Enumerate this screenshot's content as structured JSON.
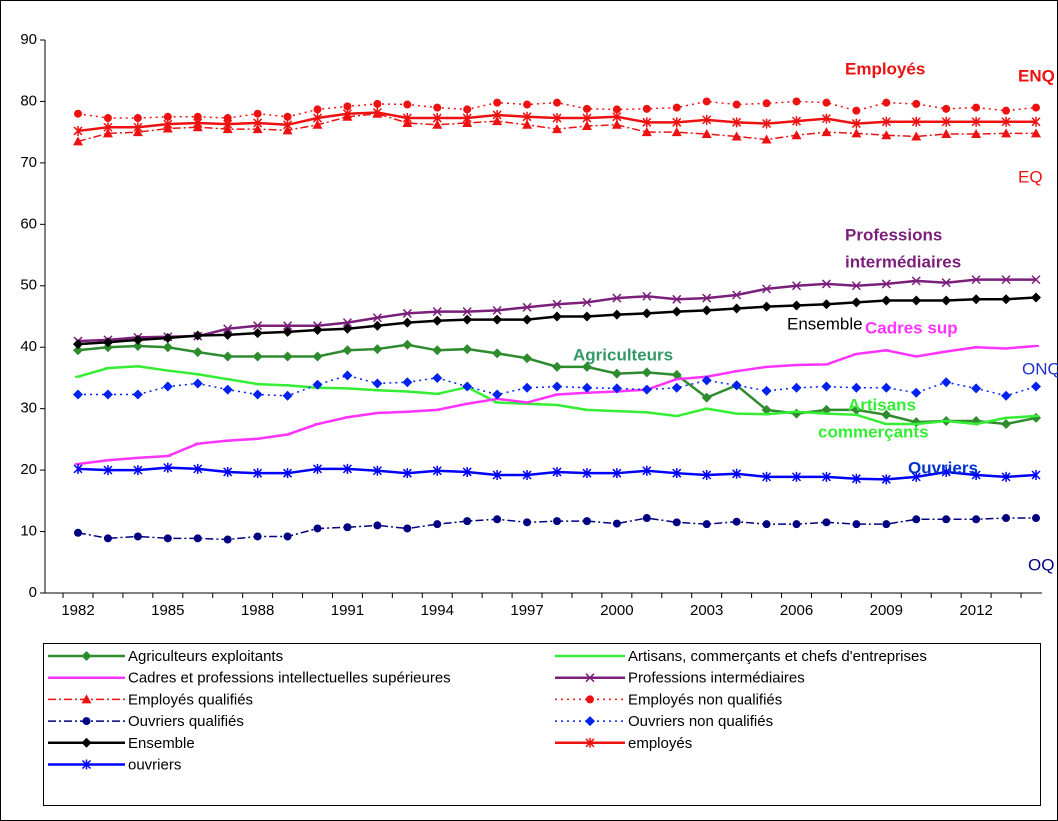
{
  "chart_data": {
    "type": "line",
    "categories": [
      "1982",
      null,
      null,
      "1985",
      null,
      null,
      "1988",
      null,
      null,
      "1991",
      null,
      null,
      "1994",
      null,
      null,
      "1997",
      null,
      null,
      "2000",
      null,
      null,
      "2003",
      null,
      null,
      "2006",
      null,
      null,
      "2009",
      null,
      null,
      "2012",
      null,
      null
    ],
    "ylim": [
      0,
      90
    ],
    "yticks": [
      0,
      10,
      20,
      30,
      40,
      50,
      60,
      70,
      80,
      90
    ],
    "series": [
      {
        "name": "Agriculteurs exploitants",
        "color": "#2e8b2e",
        "marker": "diamond",
        "dash": "none",
        "values": [
          39.5,
          40,
          40.2,
          40,
          39.2,
          38.5,
          38.5,
          38.5,
          38.5,
          39.5,
          39.7,
          40.4,
          39.5,
          39.7,
          39,
          38.2,
          36.8,
          36.8,
          35.7,
          35.9,
          35.5,
          31.8,
          33.8,
          29.8,
          29.2,
          29.8,
          29.8,
          29,
          27.8,
          28,
          28,
          27.5,
          28.5
        ]
      },
      {
        "name": "Artisans, commerçants et chefs d'entreprises",
        "color": "#33ee33",
        "marker": "dash",
        "dash": "none",
        "values": [
          35.2,
          36.6,
          36.9,
          36.2,
          35.6,
          34.8,
          34,
          33.8,
          33.4,
          33.3,
          33,
          32.8,
          32.4,
          33.5,
          31,
          30.8,
          30.6,
          29.8,
          29.6,
          29.4,
          28.8,
          30,
          29.2,
          29.1,
          29.5,
          29.2,
          29,
          27.5,
          27.5,
          28,
          27.5,
          28.5,
          28.8
        ]
      },
      {
        "name": "Cadres et professions intellectuelles supérieures",
        "color": "#ff33ff",
        "marker": "dash",
        "dash": "none",
        "values": [
          21,
          21.6,
          22,
          22.3,
          24.3,
          24.8,
          25.1,
          25.8,
          27.5,
          28.6,
          29.3,
          29.5,
          29.8,
          30.8,
          31.6,
          31,
          32.3,
          32.6,
          32.8,
          33.1,
          34.8,
          35.2,
          36.1,
          36.8,
          37.1,
          37.2,
          38.9,
          39.5,
          38.5,
          39.3,
          40,
          39.8,
          40.2
        ]
      },
      {
        "name": "Professions intermédiaires",
        "color": "#7a1f7a",
        "marker": "x",
        "dash": "none",
        "values": [
          41,
          41.2,
          41.6,
          41.7,
          41.8,
          43,
          43.5,
          43.5,
          43.5,
          44,
          44.8,
          45.5,
          45.8,
          45.8,
          46,
          46.5,
          47,
          47.3,
          48,
          48.3,
          47.8,
          48,
          48.5,
          49.5,
          50,
          50.3,
          50,
          50.3,
          50.8,
          50.5,
          51,
          51,
          51
        ]
      },
      {
        "name": "Employés qualifiés",
        "color": "#ee1111",
        "marker": "triangle",
        "dash": "8,3,2,3",
        "values": [
          73.5,
          74.8,
          75,
          75.6,
          75.8,
          75.5,
          75.5,
          75.3,
          76.2,
          77.5,
          78,
          76.5,
          76.2,
          76.5,
          76.8,
          76.2,
          75.5,
          76,
          76.2,
          75,
          75,
          74.7,
          74.3,
          73.8,
          74.5,
          75,
          74.8,
          74.5,
          74.3,
          74.7,
          74.7,
          74.8,
          74.8
        ]
      },
      {
        "name": "Employés non qualifiés",
        "color": "#ee1111",
        "marker": "circle",
        "dash": "2,4",
        "values": [
          78,
          77.3,
          77.3,
          77.5,
          77.5,
          77.3,
          78,
          77.5,
          78.7,
          79.2,
          79.6,
          79.5,
          79,
          78.7,
          79.8,
          79.5,
          79.8,
          78.8,
          78.7,
          78.8,
          79,
          80,
          79.5,
          79.7,
          80,
          79.8,
          78.5,
          79.8,
          79.6,
          78.8,
          79,
          78.5,
          79
        ]
      },
      {
        "name": "Ouvriers qualifiés",
        "color": "#000080",
        "marker": "circle",
        "dash": "8,3,2,3",
        "values": [
          9.8,
          8.9,
          9.2,
          8.9,
          8.9,
          8.7,
          9.2,
          9.2,
          10.5,
          10.7,
          11,
          10.5,
          11.2,
          11.7,
          12,
          11.5,
          11.7,
          11.7,
          11.3,
          12.2,
          11.5,
          11.2,
          11.6,
          11.2,
          11.2,
          11.5,
          11.2,
          11.2,
          12,
          12,
          12,
          12.2,
          12.2
        ]
      },
      {
        "name": "Ouvriers non qualifiés",
        "color": "#0022ee",
        "marker": "diamond",
        "dash": "2,4",
        "values": [
          32.3,
          32.3,
          32.3,
          33.6,
          34.1,
          33.1,
          32.3,
          32.1,
          33.9,
          35.4,
          34.1,
          34.3,
          35,
          33.6,
          32.3,
          33.4,
          33.6,
          33.4,
          33.3,
          33.1,
          33.4,
          34.6,
          33.8,
          32.9,
          33.4,
          33.6,
          33.4,
          33.4,
          32.6,
          34.3,
          33.3,
          32.1,
          33.6
        ]
      },
      {
        "name": "Ensemble",
        "color": "#000000",
        "marker": "diamond",
        "dash": "none",
        "values": [
          40.5,
          40.8,
          41.2,
          41.5,
          41.9,
          42,
          42.3,
          42.5,
          42.8,
          43,
          43.5,
          44,
          44.3,
          44.5,
          44.5,
          44.5,
          45,
          45,
          45.3,
          45.5,
          45.8,
          46,
          46.3,
          46.6,
          46.8,
          47,
          47.3,
          47.6,
          47.6,
          47.6,
          47.8,
          47.8,
          48.1
        ]
      },
      {
        "name": "employés",
        "color": "#ee1111",
        "marker": "asterisk",
        "dash": "none",
        "values": [
          75.2,
          75.8,
          75.8,
          76.3,
          76.5,
          76.3,
          76.5,
          76.2,
          77.3,
          78,
          78.2,
          77.3,
          77.3,
          77.3,
          77.8,
          77.5,
          77.3,
          77.3,
          77.5,
          76.6,
          76.6,
          77,
          76.6,
          76.4,
          76.8,
          77.2,
          76.4,
          76.7,
          76.7,
          76.7,
          76.7,
          76.7,
          76.7
        ]
      },
      {
        "name": "ouvriers",
        "color": "#0000ff",
        "marker": "asterisk",
        "dash": "none",
        "values": [
          20.2,
          20,
          20,
          20.4,
          20.2,
          19.7,
          19.5,
          19.5,
          20.2,
          20.2,
          19.9,
          19.5,
          19.9,
          19.7,
          19.2,
          19.2,
          19.7,
          19.5,
          19.5,
          19.9,
          19.5,
          19.2,
          19.4,
          18.9,
          18.9,
          18.9,
          18.6,
          18.5,
          18.9,
          19.7,
          19.2,
          18.9,
          19.2
        ]
      }
    ],
    "annotations": [
      {
        "lines": [
          "Employés"
        ],
        "color": "#ee1111",
        "bold": true
      },
      {
        "lines": [
          "ENQ"
        ],
        "color": "#ee1111",
        "bold": true
      },
      {
        "lines": [
          "EQ"
        ],
        "color": "#ee1111",
        "bold": false
      },
      {
        "lines": [
          "Professions",
          "intermédiaires"
        ],
        "color": "#7a1f7a",
        "bold": true
      },
      {
        "lines": [
          "Ensemble"
        ],
        "color": "#000000",
        "bold": false
      },
      {
        "lines": [
          "Cadres sup"
        ],
        "color": "#ff33ff",
        "bold": true
      },
      {
        "lines": [
          "ONQ"
        ],
        "color": "#2233cc",
        "bold": false
      },
      {
        "lines": [
          "Agriculteurs"
        ],
        "color": "#339966",
        "bold": true
      },
      {
        "lines": [
          "Artisans",
          "commerçants"
        ],
        "color": "#33ee33",
        "bold": true
      },
      {
        "lines": [
          "Ouvriers"
        ],
        "color": "#0033cc",
        "bold": true
      },
      {
        "lines": [
          "OQ"
        ],
        "color": "#000080",
        "bold": false
      }
    ]
  }
}
